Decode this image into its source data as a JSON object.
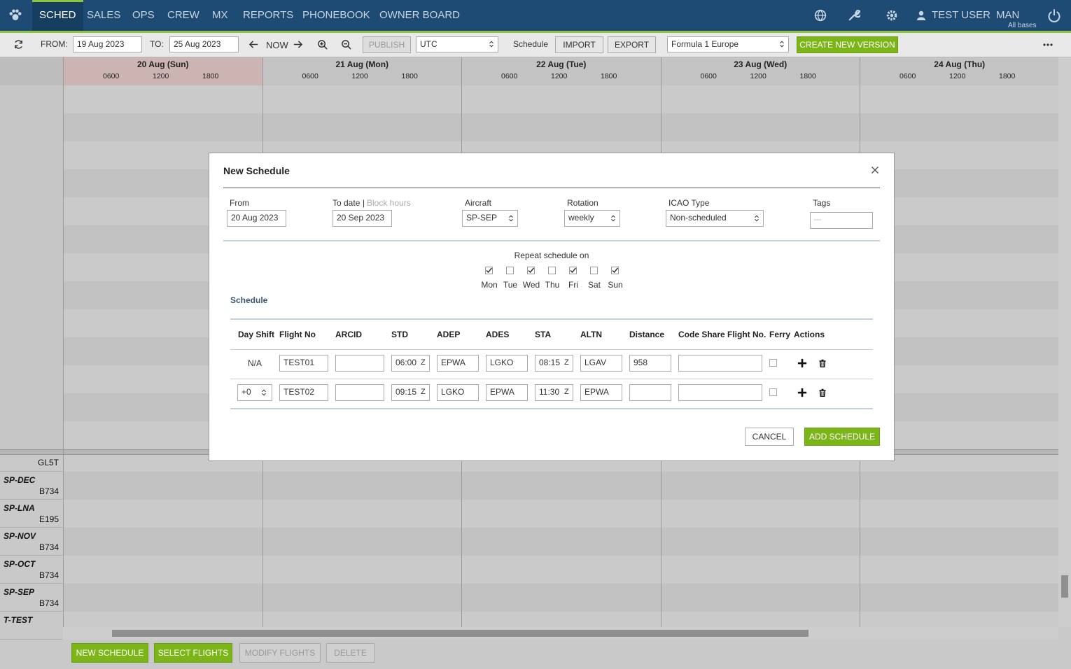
{
  "nav": {
    "items": [
      "SCHED",
      "SALES",
      "OPS",
      "CREW",
      "MX",
      "REPORTS",
      "PHONEBOOK",
      "OWNER BOARD"
    ],
    "user": "TEST USER",
    "base": "MAN",
    "base_note": "All bases"
  },
  "toolbar": {
    "from_label": "FROM:",
    "from": "19 Aug 2023",
    "to_label": "TO:",
    "to": "25 Aug 2023",
    "now": "NOW",
    "publish": "PUBLISH",
    "timezone": "UTC",
    "schedule_label": "Schedule",
    "import": "IMPORT",
    "export": "EXPORT",
    "version": "Formula 1 Europe",
    "create_version": "CREATE NEW VERSION"
  },
  "timeline": {
    "days": [
      {
        "label": "20 Aug (Sun)",
        "hours": [
          "0600",
          "1200",
          "1800"
        ]
      },
      {
        "label": "21 Aug (Mon)",
        "hours": [
          "0600",
          "1200",
          "1800"
        ]
      },
      {
        "label": "22 Aug (Tue)",
        "hours": [
          "0600",
          "1200",
          "1800"
        ]
      },
      {
        "label": "23 Aug (Wed)",
        "hours": [
          "0600",
          "1200",
          "1800"
        ]
      },
      {
        "label": "24 Aug (Thu)",
        "hours": [
          "0600",
          "1200",
          "1800"
        ]
      }
    ],
    "rows": [
      {
        "type": "GL5T"
      },
      {
        "reg": "SP-DEC",
        "type": "B734"
      },
      {
        "reg": "SP-LNA",
        "type": "E195"
      },
      {
        "reg": "SP-NOV",
        "type": "B734"
      },
      {
        "reg": "SP-OCT",
        "type": "B734"
      },
      {
        "reg": "SP-SEP",
        "type": "B734"
      },
      {
        "reg": "T-TEST"
      }
    ]
  },
  "footer": {
    "buttons": [
      {
        "label": "NEW SCHEDULE",
        "enabled": true
      },
      {
        "label": "SELECT FLIGHTS",
        "enabled": true
      },
      {
        "label": "MODIFY FLIGHTS",
        "enabled": false
      },
      {
        "label": "DELETE",
        "enabled": false
      }
    ]
  },
  "modal": {
    "title": "New Schedule",
    "fields": {
      "from_label": "From",
      "from": "20 Aug 2023",
      "to_label": "To date",
      "to_separator": "|",
      "to_alt": "Block hours",
      "to": "20 Sep 2023",
      "aircraft_label": "Aircraft",
      "aircraft": "SP-SEP",
      "rotation_label": "Rotation",
      "rotation": "weekly",
      "icao_label": "ICAO Type",
      "icao": "Non-scheduled",
      "tags_label": "Tags",
      "tags_placeholder": "---"
    },
    "repeat_label": "Repeat schedule on",
    "repeat_days": [
      {
        "label": "Mon",
        "checked": true
      },
      {
        "label": "Tue",
        "checked": false
      },
      {
        "label": "Wed",
        "checked": true
      },
      {
        "label": "Thu",
        "checked": false
      },
      {
        "label": "Fri",
        "checked": true
      },
      {
        "label": "Sat",
        "checked": false
      },
      {
        "label": "Sun",
        "checked": true
      }
    ],
    "schedule_heading": "Schedule",
    "table": {
      "headers": [
        "Day Shift",
        "Flight No",
        "ARCID",
        "STD",
        "ADEP",
        "ADES",
        "STA",
        "ALTN",
        "Distance",
        "Code Share Flight No.",
        "Ferry",
        "Actions"
      ],
      "rows": [
        {
          "day_shift": "N/A",
          "flight_no": "TEST01",
          "std": "06:00",
          "std_zone": "Z",
          "adep": "EPWA",
          "ades": "LGKO",
          "sta": "08:15",
          "sta_zone": "Z",
          "altn": "LGAV",
          "distance": "958",
          "ferry": false
        },
        {
          "day_shift_select": "+0",
          "flight_no": "TEST02",
          "std": "09:15",
          "std_zone": "Z",
          "adep": "LGKO",
          "ades": "EPWA",
          "sta": "11:30",
          "sta_zone": "Z",
          "altn": "EPWA",
          "ferry": false
        }
      ]
    },
    "cancel": "CANCEL",
    "submit": "ADD SCHEDULE"
  }
}
